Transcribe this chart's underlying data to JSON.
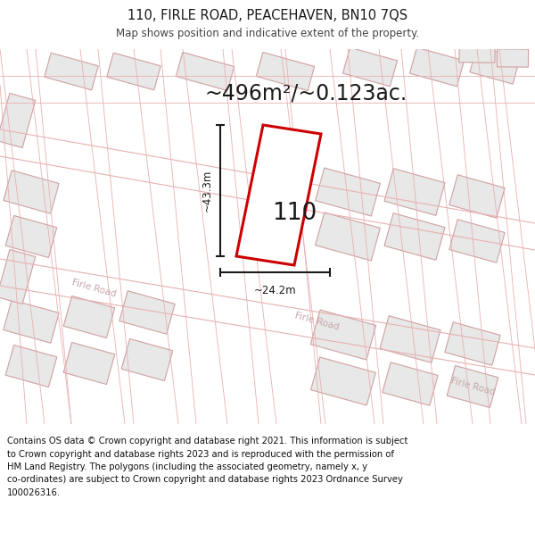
{
  "title": "110, FIRLE ROAD, PEACEHAVEN, BN10 7QS",
  "subtitle": "Map shows position and indicative extent of the property.",
  "area_text": "~496m²/~0.123ac.",
  "width_label": "~24.2m",
  "height_label": "~43.3m",
  "property_number": "110",
  "road_label1": "Firle Road",
  "road_label2": "Firle Road",
  "road_label3": "Firle Road",
  "bg_color": "#ffffff",
  "map_bg": "#fdf8f8",
  "road_line_color": "#e8b0b0",
  "building_fill": "#e8e8e8",
  "building_outline": "#d0a0a0",
  "highlight_fill": "#ffffff",
  "highlight_outline": "#cc0000",
  "dim_line_color": "#1a1a1a",
  "text_color": "#1a1a1a",
  "road_text_color": "#c8a8a8",
  "footer_color": "#111111",
  "footer_lines": [
    "Contains OS data © Crown copyright and database right 2021. This information is subject",
    "to Crown copyright and database rights 2023 and is reproduced with the permission of",
    "HM Land Registry. The polygons (including the associated geometry, namely x, y",
    "co-ordinates) are subject to Crown copyright and database rights 2023 Ordnance Survey",
    "100026316."
  ]
}
